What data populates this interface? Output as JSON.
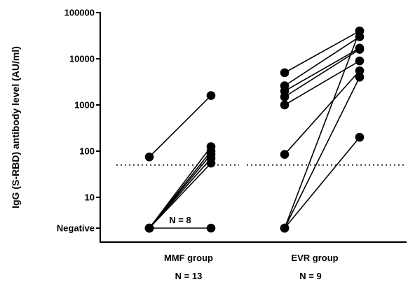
{
  "chart_data": {
    "type": "scatter",
    "ylabel": "IgG (S-RBD) antibody level (AU/ml)",
    "y_scale": "log",
    "y_ticks": [
      "Negative",
      "10",
      "100",
      "1000",
      "10000",
      "100000"
    ],
    "threshold": 50,
    "threshold_style": "dotted",
    "groups": [
      {
        "name": "MMF group",
        "n_label": "N = 13",
        "annotation": "N = 8",
        "pairs": [
          {
            "before": 75,
            "after": 1600
          },
          {
            "before": "Negative",
            "after": 125
          },
          {
            "before": "Negative",
            "after": 100
          },
          {
            "before": "Negative",
            "after": 85
          },
          {
            "before": "Negative",
            "after": 70
          },
          {
            "before": "Negative",
            "after": 55
          },
          {
            "before": "Negative",
            "after": "Negative"
          }
        ]
      },
      {
        "name": "EVR group",
        "n_label": "N = 9",
        "annotation": "",
        "pairs": [
          {
            "before": 5000,
            "after": 40000
          },
          {
            "before": 2600,
            "after": 30000
          },
          {
            "before": 2000,
            "after": 17000
          },
          {
            "before": 1500,
            "after": 16000
          },
          {
            "before": 1000,
            "after": 9000
          },
          {
            "before": 85,
            "after": 5500
          },
          {
            "before": "Negative",
            "after": 4000
          },
          {
            "before": "Negative",
            "after": 40000
          },
          {
            "before": "Negative",
            "after": 200
          }
        ]
      }
    ],
    "grid": false
  }
}
